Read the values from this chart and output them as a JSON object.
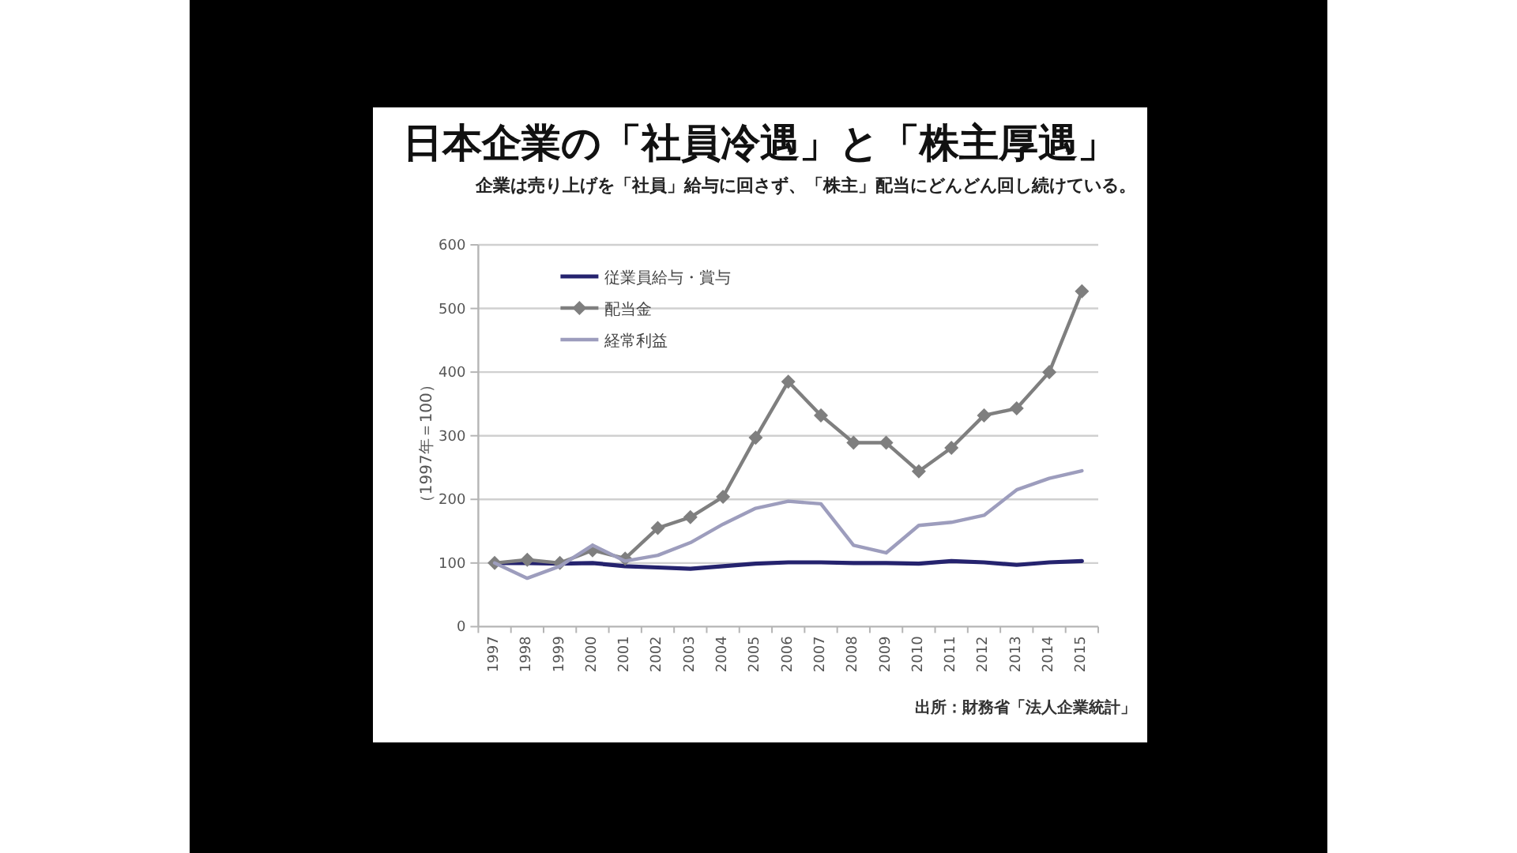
{
  "chart_data": {
    "type": "line",
    "title": "日本企業の「社員冷遇」と「株主厚遇」",
    "subtitle": "企業は売り上げを「社員」給与に回さず、「株主」配当にどんどん回し続けている。",
    "ylabel": "（1997年＝100）",
    "annotations": [
      "出所：財務省「法人企業統計」"
    ],
    "categories": [
      "1997",
      "1998",
      "1999",
      "2000",
      "2001",
      "2002",
      "2003",
      "2004",
      "2005",
      "2006",
      "2007",
      "2008",
      "2009",
      "2010",
      "2011",
      "2012",
      "2013",
      "2014",
      "2015"
    ],
    "ylim": [
      0,
      600
    ],
    "yticks": [
      0,
      100,
      200,
      300,
      400,
      500,
      600
    ],
    "grid": "y",
    "legend": "top left",
    "series": [
      {
        "name": "従業員給与・賞与",
        "color": "#25236e",
        "values": [
          100,
          100,
          99,
          100,
          95,
          93,
          91,
          95,
          99,
          101,
          101,
          100,
          100,
          99,
          103,
          101,
          97,
          101,
          103
        ]
      },
      {
        "name": "配当金",
        "color": "#7f7f7f",
        "marker": "diamond",
        "values": [
          100,
          105,
          100,
          120,
          107,
          155,
          172,
          204,
          297,
          385,
          332,
          289,
          289,
          244,
          281,
          332,
          343,
          400,
          527
        ]
      },
      {
        "name": "経常利益",
        "color": "#9d9dbd",
        "values": [
          100,
          76,
          95,
          128,
          103,
          112,
          132,
          161,
          186,
          197,
          193,
          128,
          116,
          159,
          164,
          175,
          215,
          233,
          245
        ]
      }
    ]
  }
}
